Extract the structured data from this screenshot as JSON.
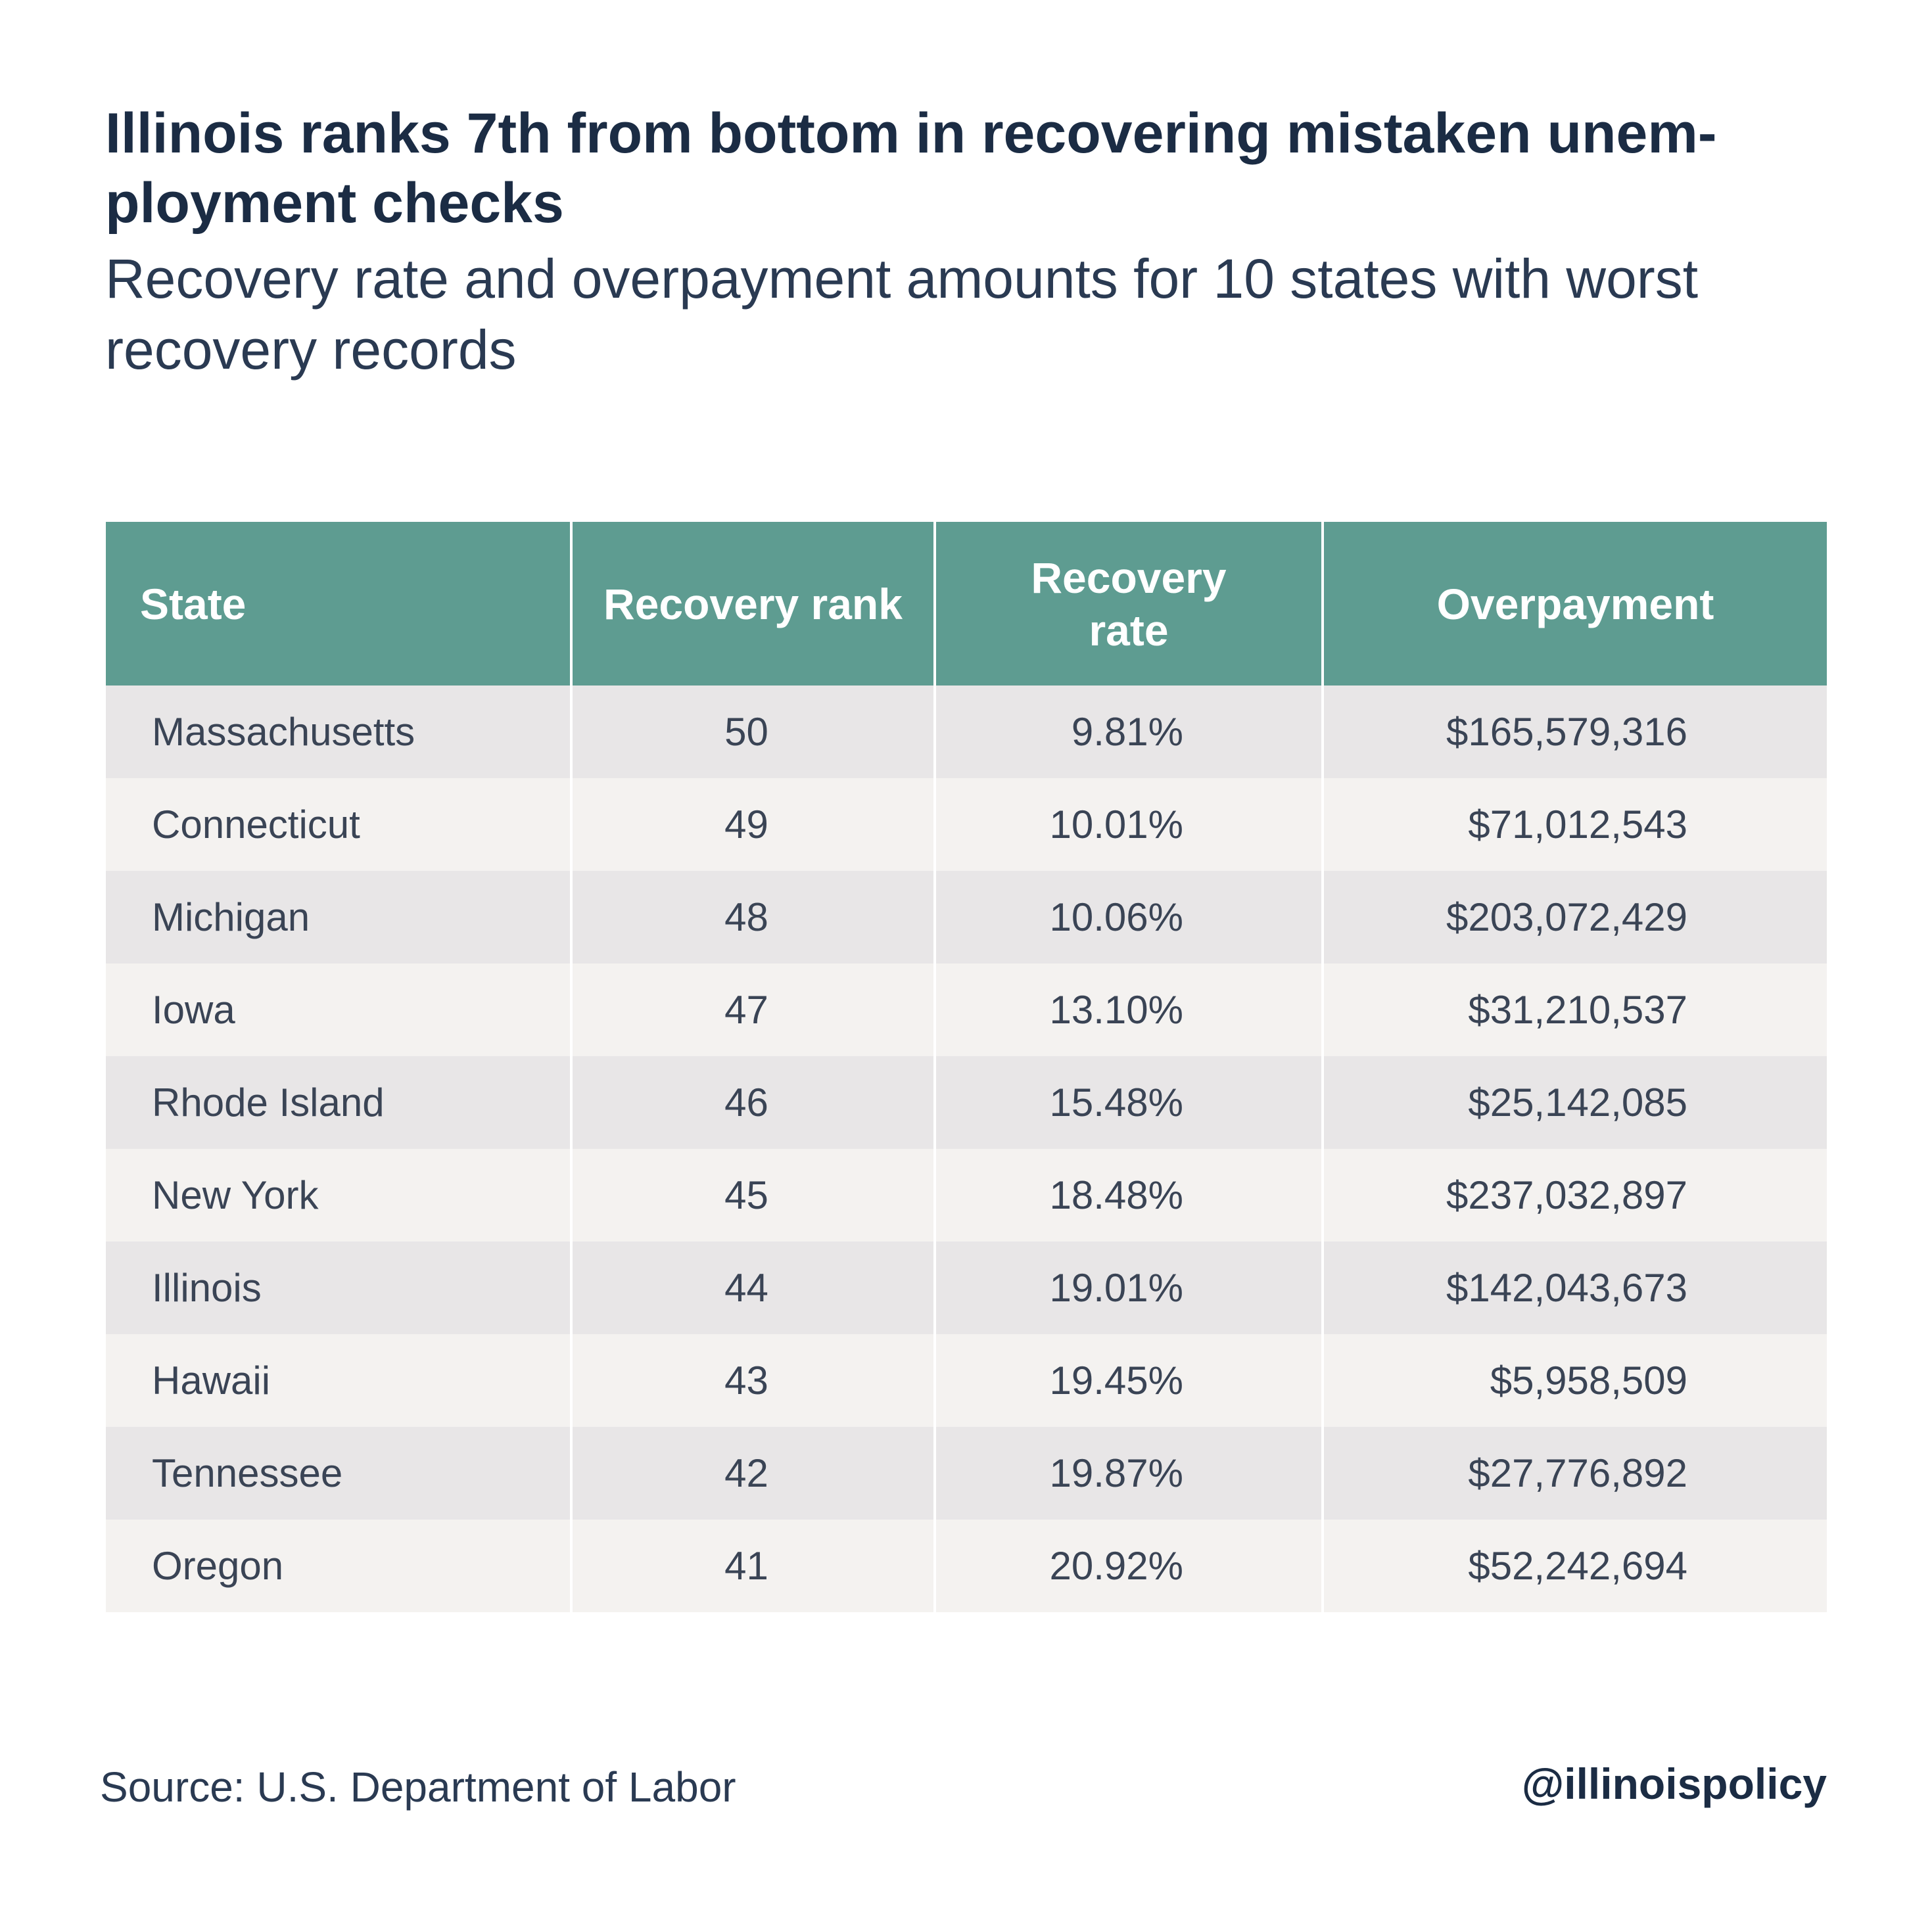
{
  "title": "Illinois ranks 7th from bottom in recovering mistaken unem-ployment checks",
  "subtitle": "Recovery rate and overpayment amounts for 10 states with worst recovery records",
  "source": "Source: U.S. Department of Labor",
  "handle": "@illinoispolicy",
  "colors": {
    "header_bg": "#5e9c91",
    "row_odd": "#e8e6e7",
    "row_even": "#f4f2f0",
    "title_text": "#1b2c44"
  },
  "chart_data": {
    "type": "table",
    "title": "Illinois ranks 7th from bottom in recovering mistaken unem-ployment checks",
    "subtitle": "Recovery rate and overpayment amounts for 10 states with worst recovery records",
    "columns": [
      "State",
      "Recovery rank",
      "Recovery rate",
      "Overpayment"
    ],
    "rows": [
      [
        "Massachusetts",
        "50",
        "9.81%",
        "$165,579,316"
      ],
      [
        "Connecticut",
        "49",
        "10.01%",
        "$71,012,543"
      ],
      [
        "Michigan",
        "48",
        "10.06%",
        "$203,072,429"
      ],
      [
        "Iowa",
        "47",
        "13.10%",
        "$31,210,537"
      ],
      [
        "Rhode Island",
        "46",
        "15.48%",
        "$25,142,085"
      ],
      [
        "New York",
        "45",
        "18.48%",
        "$237,032,897"
      ],
      [
        "Illinois",
        "44",
        "19.01%",
        "$142,043,673"
      ],
      [
        "Hawaii",
        "43",
        "19.45%",
        "$5,958,509"
      ],
      [
        "Tennessee",
        "42",
        "19.87%",
        "$27,776,892"
      ],
      [
        "Oregon",
        "41",
        "20.92%",
        "$52,242,694"
      ]
    ]
  }
}
